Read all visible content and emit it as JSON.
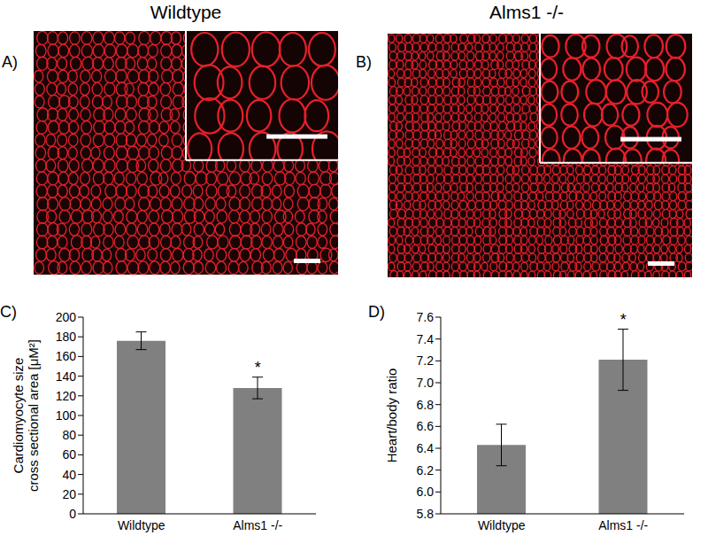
{
  "images": [
    {
      "label": "A)",
      "title": "Wildtype"
    },
    {
      "label": "B)",
      "title": "Alms1 -/-"
    }
  ],
  "chart_data": [
    {
      "label": "C)",
      "type": "bar",
      "categories": [
        "Wildtype",
        "Alms1 -/-"
      ],
      "values": [
        176,
        128
      ],
      "errors": [
        9,
        11
      ],
      "color": "#808080",
      "y_label": [
        "Cardiomyocyte size",
        "cross sectional area [μM²]"
      ],
      "ylim": [
        0,
        200
      ],
      "yticks": [
        0,
        20,
        40,
        60,
        80,
        100,
        120,
        140,
        160,
        180,
        200
      ],
      "annotations": [
        {
          "category": "Alms1 -/-",
          "text": "*"
        }
      ],
      "grid": false
    },
    {
      "label": "D)",
      "type": "bar",
      "categories": [
        "Wildtype",
        "Alms1 -/-"
      ],
      "values": [
        6.43,
        7.21
      ],
      "errors": [
        0.19,
        0.28
      ],
      "color": "#808080",
      "y_label": [
        "Heart/body ratio"
      ],
      "ylim": [
        5.8,
        7.6
      ],
      "yticks": [
        5.8,
        {
          "value": 6,
          "label": "6.0"
        },
        6.2,
        6.4,
        6.6,
        6.8,
        {
          "value": 7,
          "label": "7.0"
        },
        7.2,
        7.4,
        7.6
      ],
      "annotations": [
        {
          "category": "Alms1 -/-",
          "text": "*"
        }
      ],
      "grid": false
    }
  ]
}
